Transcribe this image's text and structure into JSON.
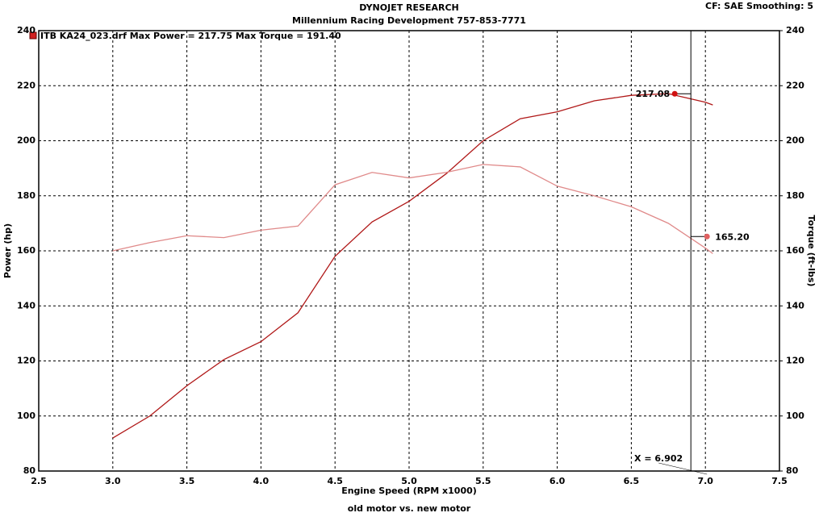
{
  "chart_data": {
    "type": "line",
    "title": "DYNOJET RESEARCH",
    "subtitle": "Millennium Racing Development 757-853-7771",
    "settings_label": "CF: SAE  Smoothing: 5",
    "legend_label": "ITB KA24_023.drf Max Power = 217.75     Max Torque = 191.40",
    "xlabel": "Engine Speed (RPM x1000)",
    "ylabel": "Power (hp)",
    "y2label": "Torque (ft-lbs)",
    "footer": "old motor vs. new motor",
    "x": [
      3.0,
      3.25,
      3.5,
      3.75,
      4.0,
      4.25,
      4.5,
      4.75,
      5.0,
      5.25,
      5.5,
      5.75,
      6.0,
      6.25,
      6.5,
      6.75,
      7.0,
      7.05
    ],
    "series": [
      {
        "name": "Power",
        "color": "#b01818",
        "values": [
          92,
          100,
          111,
          120.5,
          127,
          137.5,
          158,
          170.5,
          178,
          188,
          200,
          208,
          210.5,
          214.5,
          216.5,
          217.1,
          214,
          213
        ]
      },
      {
        "name": "Torque",
        "color": "#e08a8a",
        "axis": "y2",
        "values": [
          160,
          163,
          165.5,
          164.8,
          167.5,
          169,
          184,
          188.5,
          186.5,
          188.5,
          191.4,
          190.5,
          183.5,
          180,
          176,
          170,
          161,
          159
        ]
      }
    ],
    "cursor": {
      "x": {
        "value": 6.902,
        "label": "X = 6.902"
      },
      "values": [
        217.08,
        165.2
      ],
      "value_labels": [
        "217.08",
        "165.20"
      ]
    },
    "xlim": [
      2.5,
      7.5
    ],
    "xticks": [
      2.5,
      {
        "value": 3,
        "label": "3.0"
      },
      3.5,
      {
        "value": 4,
        "label": "4.0"
      },
      4.5,
      {
        "value": 5,
        "label": "5.0"
      },
      5.5,
      {
        "value": 6,
        "label": "6.0"
      },
      6.5,
      {
        "value": 7,
        "label": "7.0"
      },
      7.5
    ],
    "ylim": [
      80,
      240
    ],
    "yticks": [
      80,
      100,
      120,
      140,
      160,
      180,
      200,
      220,
      240
    ],
    "y2lim": [
      80,
      240
    ],
    "y2ticks": [
      80,
      100,
      120,
      140,
      160,
      180,
      200,
      220,
      240
    ],
    "grid": true
  }
}
